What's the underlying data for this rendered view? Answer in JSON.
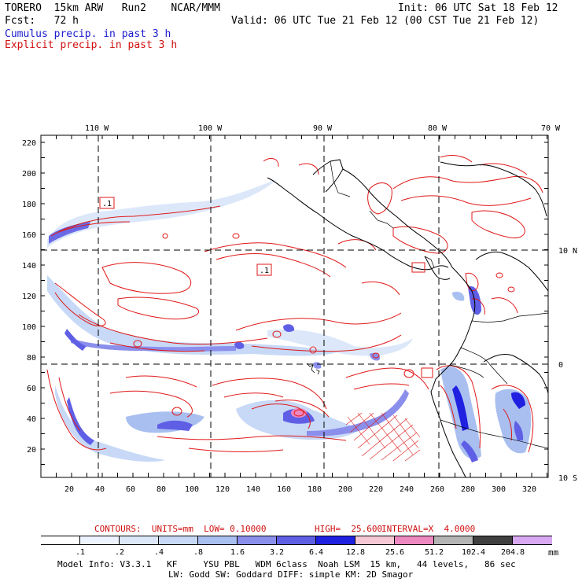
{
  "header": {
    "model": "TORERO  15km ARW   Run2    NCAR/MMM",
    "forecast": "Fcst:   72 h",
    "init": "Init: 06 UTC Sat 18 Feb 12",
    "valid": "Valid: 06 UTC Tue 21 Feb 12 (00 CST Tue 21 Feb 12)",
    "field_cumulus": "Cumulus precip. in past 3 h",
    "field_explicit": "Explicit precip. in past 3 h"
  },
  "axes": {
    "lon_labels": [
      "110 W",
      "100 W",
      "90 W",
      "80 W",
      "70 W"
    ],
    "lat_labels": [
      "10 N",
      "0",
      "10 S"
    ],
    "y_grid_labels": [
      "220",
      "200",
      "180",
      "160",
      "140",
      "120",
      "100",
      "80",
      "60",
      "40",
      "20"
    ],
    "x_grid_labels": [
      "20",
      "40",
      "60",
      "80",
      "100",
      "120",
      "140",
      "160",
      "180",
      "200",
      "220",
      "240",
      "260",
      "280",
      "300",
      "320"
    ]
  },
  "map_labels": {
    "box_label": ".1"
  },
  "contours": {
    "text_contours": "CONTOURS:  UNITS=mm  LOW= 0.10000",
    "text_high": "HIGH=  25.600",
    "text_interval": "INTERVAL=X  4.0000"
  },
  "colorbar": {
    "labels": [
      ".1",
      ".2",
      ".4",
      ".8",
      "1.6",
      "3.2",
      "6.4",
      "12.8",
      "25.6",
      "51.2",
      "102.4",
      "204.8"
    ],
    "unit": "mm",
    "colors": [
      "#ffffff",
      "#eef4ff",
      "#dce8fa",
      "#c7d9f6",
      "#a9bff0",
      "#8b8fec",
      "#5f5fe6",
      "#2020e0",
      "#f6c8d6",
      "#ee88c0",
      "#b4b4b4",
      "#404040",
      "#d8a8f2"
    ]
  },
  "footer": {
    "line1": "Model Info: V3.3.1   KF     YSU PBL   WDM 6class  Noah LSM  15 km,   44 levels,   86 sec",
    "line2": "LW: Godd SW: Goddard DIFF: simple KM: 2D Smagor"
  }
}
